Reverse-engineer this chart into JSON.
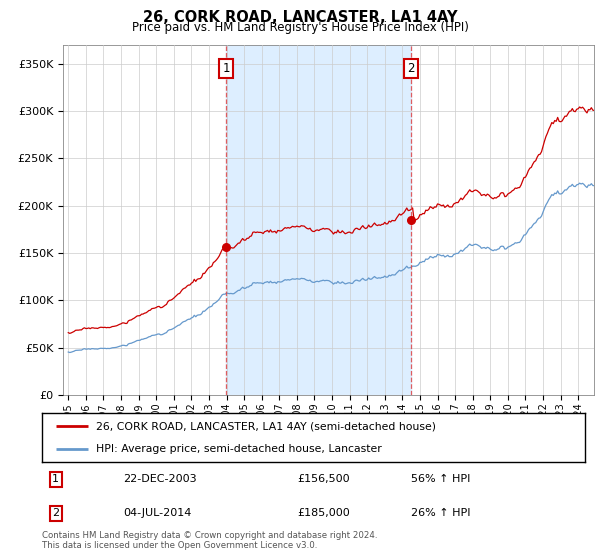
{
  "title": "26, CORK ROAD, LANCASTER, LA1 4AY",
  "subtitle": "Price paid vs. HM Land Registry's House Price Index (HPI)",
  "legend_line1": "26, CORK ROAD, LANCASTER, LA1 4AY (semi-detached house)",
  "legend_line2": "HPI: Average price, semi-detached house, Lancaster",
  "footer": "Contains HM Land Registry data © Crown copyright and database right 2024.\nThis data is licensed under the Open Government Licence v3.0.",
  "annotation1_date": "22-DEC-2003",
  "annotation1_price": "£156,500",
  "annotation1_hpi": "56% ↑ HPI",
  "annotation2_date": "04-JUL-2014",
  "annotation2_price": "£185,000",
  "annotation2_hpi": "26% ↑ HPI",
  "line_color_red": "#cc0000",
  "line_color_blue": "#6699cc",
  "fill_color": "#ddeeff",
  "annotation_color": "#cc0000",
  "dashed_line_color": "#dd4444",
  "yticks": [
    0,
    50000,
    100000,
    150000,
    200000,
    250000,
    300000,
    350000
  ],
  "ytick_labels": [
    "£0",
    "£50K",
    "£100K",
    "£150K",
    "£200K",
    "£250K",
    "£300K",
    "£350K"
  ],
  "sale1_x": 2003.97,
  "sale1_y": 156500,
  "sale2_x": 2014.5,
  "sale2_y": 185000,
  "xmin": 1995,
  "xmax": 2024.5
}
